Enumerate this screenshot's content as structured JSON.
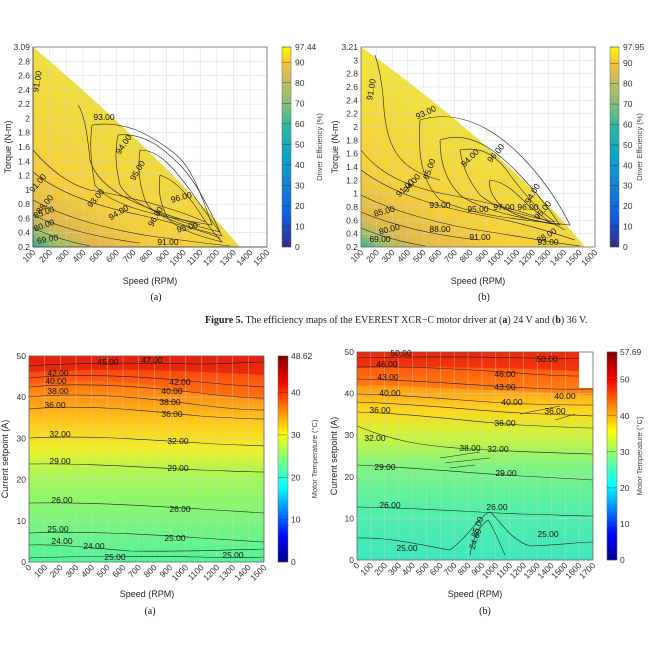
{
  "caption": {
    "fig": "Figure 5.",
    "text": " The efficiency maps of the EVEREST XCR−C motor driver at (",
    "a": "a",
    "mid": ") 24 V and (",
    "b": "b",
    "end": ") 36 V."
  },
  "chart_data": [
    {
      "type": "heatmap",
      "panel": "(a)",
      "xlabel": "Speed (RPM)",
      "ylabel": "Torque (N-m)",
      "colorbar_label": "Driver Efficiency (%)",
      "xticks": [
        "100",
        "200",
        "300",
        "400",
        "500",
        "600",
        "700",
        "800",
        "900",
        "1000",
        "1100",
        "1200",
        "1300",
        "1400",
        "1500"
      ],
      "yticks": [
        "0.2",
        "0.4",
        "0.6",
        "0.8",
        "1",
        "1.2",
        "1.4",
        "1.6",
        "1.8",
        "2",
        "2.2",
        "2.4",
        "2.6",
        "2.8",
        "3.09"
      ],
      "colorbar_ticks": [
        "97.44",
        "90",
        "80",
        "70",
        "60",
        "50",
        "40",
        "30",
        "20",
        "10",
        "0"
      ],
      "cmin": 0,
      "cmax": 97.44,
      "contour_labels": [
        "91.00",
        "93.00",
        "94.00",
        "95.00",
        "96.00",
        "91.00",
        "88.00",
        "93.00",
        "94.00",
        "96.00",
        "95.00",
        "85.00",
        "80.00",
        "69.00",
        "91.00"
      ]
    },
    {
      "type": "heatmap",
      "panel": "(b)",
      "xlabel": "Speed (RPM)",
      "ylabel": "Torque (N-m)",
      "colorbar_label": "Driver Efficiency (%)",
      "xticks": [
        "100",
        "200",
        "300",
        "400",
        "500",
        "600",
        "700",
        "800",
        "900",
        "1000",
        "1100",
        "1200",
        "1300",
        "1400",
        "1500",
        "1600"
      ],
      "yticks": [
        "0.2",
        "0.4",
        "0.6",
        "0.8",
        "1",
        "1.2",
        "1.4",
        "1.6",
        "1.8",
        "2",
        "2.2",
        "2.4",
        "2.6",
        "2.8",
        "3",
        "3.21"
      ],
      "colorbar_ticks": [
        "97.95",
        "90",
        "80",
        "70",
        "60",
        "50",
        "40",
        "30",
        "20",
        "10",
        "0"
      ],
      "cmin": 0,
      "cmax": 97.95,
      "contour_labels": [
        "91.00",
        "93.00",
        "94.00",
        "95.00",
        "94.00",
        "91.00",
        "88.00",
        "93.00",
        "95.00",
        "97.00",
        "96.00",
        "95.00",
        "94.00",
        "85.00",
        "80.00",
        "69.00",
        "88.00",
        "91.00",
        "93.00",
        "96.00"
      ]
    },
    {
      "type": "heatmap",
      "panel": "(a)",
      "xlabel": "Speed (RPM)",
      "ylabel": "Current setpoint (A)",
      "colorbar_label": "Motor Temperature (°C)",
      "xticks": [
        "0",
        "100",
        "200",
        "300",
        "400",
        "500",
        "600",
        "700",
        "800",
        "900",
        "1000",
        "1100",
        "1200",
        "1300",
        "1400",
        "1500"
      ],
      "yticks": [
        "0",
        "10",
        "20",
        "30",
        "40",
        "50"
      ],
      "colorbar_ticks": [
        "48.62",
        "40",
        "30",
        "20",
        "10",
        "0"
      ],
      "cmin": 0,
      "cmax": 48.62,
      "contour_labels": [
        "45.00",
        "47.00",
        "42.00",
        "42.00",
        "40.00",
        "40.00",
        "38.00",
        "38.00",
        "36.00",
        "36.00",
        "32.00",
        "32.00",
        "29.00",
        "29.00",
        "26.00",
        "26.00",
        "25.00",
        "25.00",
        "24.00",
        "24.00",
        "25.00",
        "25.00"
      ]
    },
    {
      "type": "heatmap",
      "panel": "(b)",
      "xlabel": "Speed (RPM)",
      "ylabel": "Current setpoint (A)",
      "colorbar_label": "Motor Temperature (°C)",
      "xticks": [
        "0",
        "100",
        "200",
        "300",
        "400",
        "500",
        "600",
        "700",
        "800",
        "900",
        "1000",
        "1100",
        "1200",
        "1300",
        "1400",
        "1500",
        "1600",
        "1700"
      ],
      "yticks": [
        "0",
        "10",
        "20",
        "30",
        "40",
        "50"
      ],
      "colorbar_ticks": [
        "57.69",
        "50",
        "40",
        "30",
        "20",
        "10",
        "0"
      ],
      "cmin": 0,
      "cmax": 57.69,
      "contour_labels": [
        "50.00",
        "50.00",
        "46.00",
        "46.00",
        "43.00",
        "43.00",
        "40.00",
        "40.00",
        "40.00",
        "38.00",
        "36.00",
        "36.00",
        "32.00",
        "36.00",
        "32.00",
        "29.00",
        "29.00",
        "26.00",
        "26.00",
        "25.00",
        "24.00",
        "25.00",
        "25.00"
      ]
    }
  ]
}
